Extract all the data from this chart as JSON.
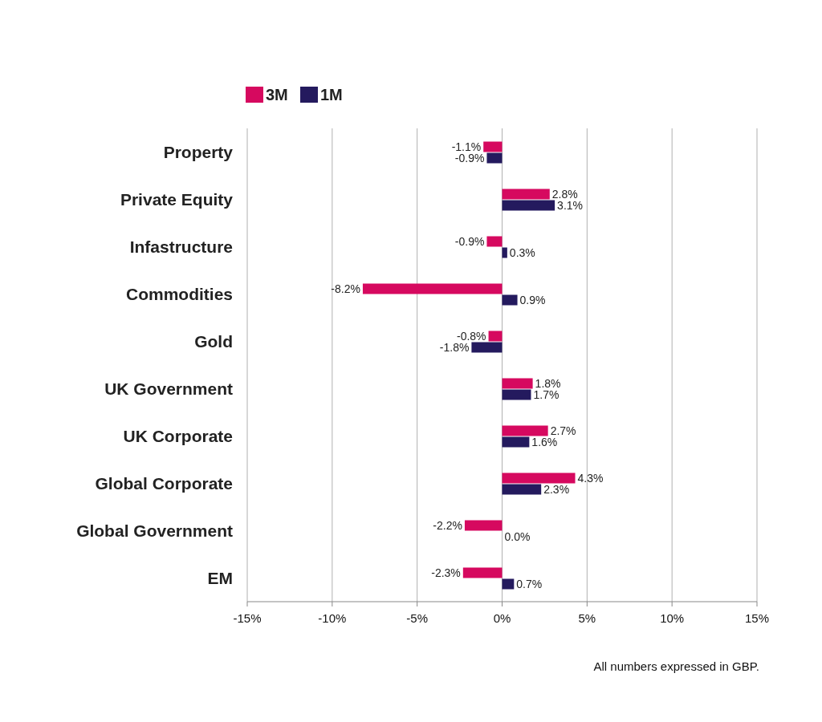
{
  "chart_data": {
    "type": "bar",
    "orientation": "horizontal",
    "categories": [
      "Property",
      "Private Equity",
      "Infastructure",
      "Commodities",
      "Gold",
      "UK Government",
      "UK Corporate",
      "Global Corporate",
      "Global Government",
      "EM"
    ],
    "series": [
      {
        "name": "3M",
        "color": "#d6095f",
        "values": [
          -1.1,
          2.8,
          -0.9,
          -8.2,
          -0.8,
          1.8,
          2.7,
          4.3,
          -2.2,
          -2.3
        ],
        "value_labels": [
          "-1.1%",
          "2.8%",
          "-0.9%",
          "-8.2%",
          "-0.8%",
          "1.8%",
          "2.7%",
          "4.3%",
          "-2.2%",
          "-2.3%"
        ]
      },
      {
        "name": "1M",
        "color": "#241a5e",
        "values": [
          -0.9,
          3.1,
          0.3,
          0.9,
          -1.8,
          1.7,
          1.6,
          2.3,
          0.0,
          0.7
        ],
        "value_labels": [
          "-0.9%",
          "3.1%",
          "0.3%",
          "0.9%",
          "-1.8%",
          "1.7%",
          "1.6%",
          "2.3%",
          "0.0%",
          "0.7%"
        ]
      }
    ],
    "xlim": [
      -15,
      15
    ],
    "xticks": [
      {
        "value": -15,
        "label": "-15%"
      },
      {
        "value": -10,
        "label": "-10%"
      },
      {
        "value": -5,
        "label": "-5%"
      },
      {
        "value": 0,
        "label": "0%"
      },
      {
        "value": 5,
        "label": "5%"
      },
      {
        "value": 10,
        "label": "10%"
      },
      {
        "value": 15,
        "label": "15%"
      }
    ],
    "grid": "x",
    "legend": "top left",
    "annotations": [
      "All numbers expressed in GBP."
    ]
  }
}
